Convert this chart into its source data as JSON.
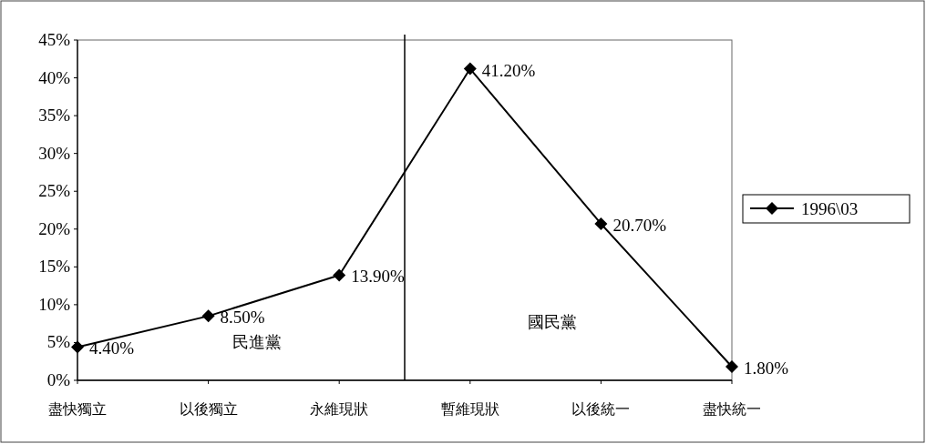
{
  "chart_data": {
    "type": "line",
    "categories": [
      "盡快獨立",
      "以後獨立",
      "永維現狀",
      "暫維現狀",
      "以後統一",
      "盡快統一"
    ],
    "series": [
      {
        "name": "1996\\03",
        "color": "#000000",
        "values": [
          4.4,
          8.5,
          13.9,
          41.2,
          20.7,
          1.8
        ],
        "value_labels": [
          "4.40%",
          "8.50%",
          "13.90%",
          "41.20%",
          "20.70%",
          "1.80%"
        ]
      }
    ],
    "ylim": [
      0,
      45
    ],
    "yticks": [
      {
        "value": 0,
        "label": "0%"
      },
      {
        "value": 5,
        "label": "5%"
      },
      {
        "value": 10,
        "label": "10%"
      },
      {
        "value": 15,
        "label": "15%"
      },
      {
        "value": 20,
        "label": "20%"
      },
      {
        "value": 25,
        "label": "25%"
      },
      {
        "value": 30,
        "label": "30%"
      },
      {
        "value": 35,
        "label": "35%"
      },
      {
        "value": 40,
        "label": "40%"
      },
      {
        "value": 45,
        "label": "45%"
      }
    ],
    "annotations": [
      "民進黨",
      "國民黨"
    ],
    "marker": "diamond",
    "legend": "right",
    "grid": false
  }
}
